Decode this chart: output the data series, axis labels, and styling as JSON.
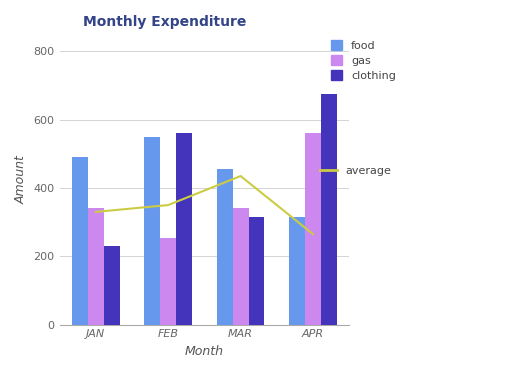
{
  "title": "Monthly Expenditure",
  "xlabel": "Month",
  "ylabel": "Amount",
  "categories": [
    "JAN",
    "FEB",
    "MAR",
    "APR"
  ],
  "food": [
    490,
    550,
    455,
    315
  ],
  "gas": [
    340,
    255,
    340,
    560
  ],
  "clothing": [
    230,
    560,
    315,
    675
  ],
  "average": [
    330,
    350,
    435,
    265
  ],
  "food_color": "#6699ee",
  "gas_color": "#cc88ee",
  "clothing_color": "#4433bb",
  "average_color": "#cccc44",
  "ylim": [
    0,
    850
  ],
  "yticks": [
    0,
    200,
    400,
    600,
    800
  ],
  "bar_width": 0.22,
  "background_color": "#ffffff",
  "title_fontsize": 10,
  "axis_label_fontsize": 9,
  "tick_fontsize": 8,
  "legend_fontsize": 8
}
